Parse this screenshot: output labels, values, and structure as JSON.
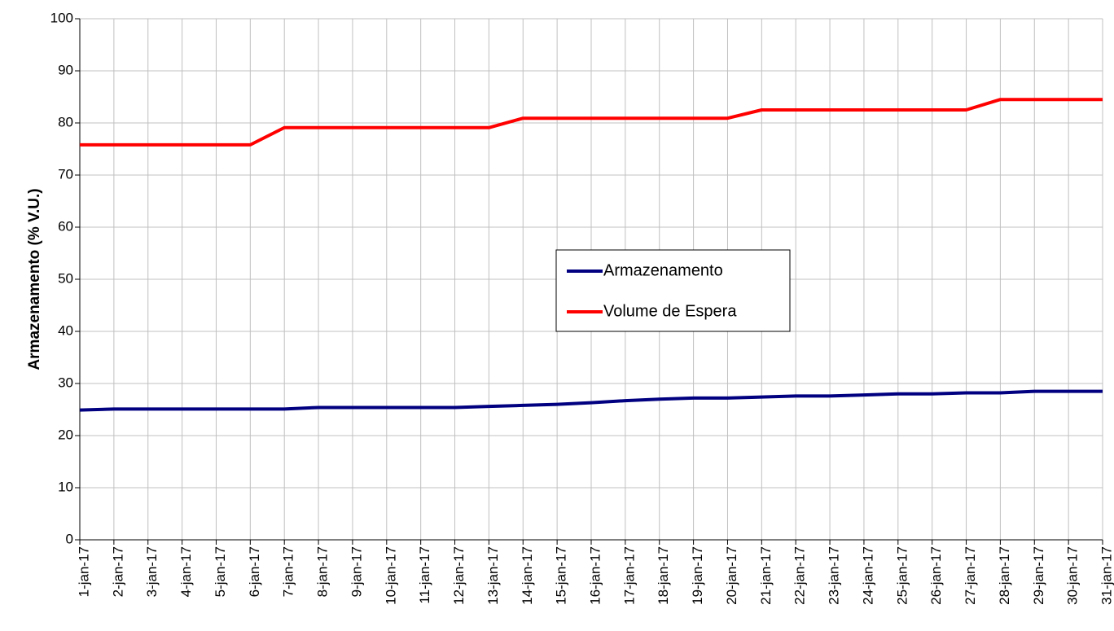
{
  "chart_data": {
    "type": "line",
    "y_label": "Armazenamento (% V.U.)",
    "categories": [
      "1-jan-17",
      "2-jan-17",
      "3-jan-17",
      "4-jan-17",
      "5-jan-17",
      "6-jan-17",
      "7-jan-17",
      "8-jan-17",
      "9-jan-17",
      "10-jan-17",
      "11-jan-17",
      "12-jan-17",
      "13-jan-17",
      "14-jan-17",
      "15-jan-17",
      "16-jan-17",
      "17-jan-17",
      "18-jan-17",
      "19-jan-17",
      "20-jan-17",
      "21-jan-17",
      "22-jan-17",
      "23-jan-17",
      "24-jan-17",
      "25-jan-17",
      "26-jan-17",
      "27-jan-17",
      "28-jan-17",
      "29-jan-17",
      "30-jan-17",
      "31-jan-17"
    ],
    "series": [
      {
        "name": "Armazenamento",
        "color": "#000080",
        "values": [
          24.9,
          25.1,
          25.1,
          25.1,
          25.1,
          25.1,
          25.1,
          25.4,
          25.4,
          25.4,
          25.4,
          25.4,
          25.6,
          25.8,
          26.0,
          26.3,
          26.7,
          27.0,
          27.2,
          27.2,
          27.4,
          27.6,
          27.6,
          27.8,
          28.0,
          28.0,
          28.2,
          28.2,
          28.5,
          28.5,
          28.5
        ]
      },
      {
        "name": "Volume de Espera",
        "color": "#ff0000",
        "values": [
          75.8,
          75.8,
          75.8,
          75.8,
          75.8,
          75.8,
          79.1,
          79.1,
          79.1,
          79.1,
          79.1,
          79.1,
          79.1,
          80.9,
          80.9,
          80.9,
          80.9,
          80.9,
          80.9,
          80.9,
          82.5,
          82.5,
          82.5,
          82.5,
          82.5,
          82.5,
          82.5,
          84.5,
          84.5,
          84.5,
          84.5
        ]
      }
    ],
    "ylim": [
      0,
      100
    ],
    "yticks": [
      0,
      10,
      20,
      30,
      40,
      50,
      60,
      70,
      80,
      90,
      100
    ],
    "grid": true
  }
}
